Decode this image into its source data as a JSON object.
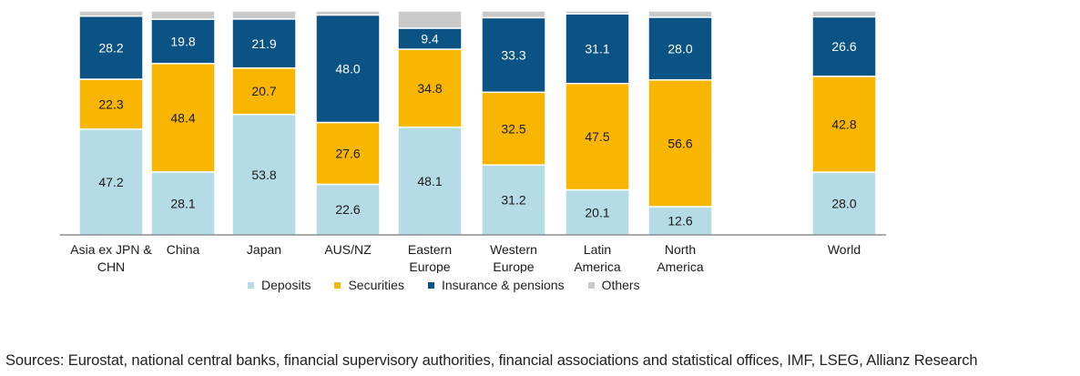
{
  "chart_data": {
    "type": "bar",
    "stacked": true,
    "normalized_percent": true,
    "categories": [
      [
        "Asia ex JPN &",
        "CHN"
      ],
      [
        "China"
      ],
      [
        "Japan"
      ],
      [
        "AUS/NZ"
      ],
      [
        "Eastern",
        "Europe"
      ],
      [
        "Western",
        "Europe"
      ],
      [
        "Latin",
        "America"
      ],
      [
        "North",
        "America"
      ],
      [
        "World"
      ]
    ],
    "series": [
      {
        "name": "Deposits",
        "color": "#b5dbe6",
        "values": [
          47.2,
          28.1,
          53.8,
          22.6,
          48.1,
          31.2,
          20.1,
          12.6,
          28.0
        ],
        "labels": [
          "47.2",
          "28.1",
          "53.8",
          "22.6",
          "48.1",
          "31.2",
          "20.1",
          "12.6",
          "28.0"
        ]
      },
      {
        "name": "Securities",
        "color": "#f9b600",
        "values": [
          22.3,
          48.4,
          20.7,
          27.6,
          34.8,
          32.5,
          47.5,
          56.6,
          42.8
        ],
        "labels": [
          "22.3",
          "48.4",
          "20.7",
          "27.6",
          "34.8",
          "32.5",
          "47.5",
          "56.6",
          "42.8"
        ]
      },
      {
        "name": "Insurance & pensions",
        "color": "#0b5384",
        "values": [
          28.2,
          19.8,
          21.9,
          48.0,
          9.4,
          33.3,
          31.1,
          28.0,
          26.6
        ],
        "labels": [
          "28.2",
          "19.8",
          "21.9",
          "48.0",
          "9.4",
          "33.3",
          "31.1",
          "28.0",
          "26.6"
        ]
      },
      {
        "name": "Others",
        "color": "#c9c9c9",
        "values": [
          2.3,
          3.7,
          3.6,
          1.8,
          7.7,
          3.0,
          1.3,
          2.8,
          2.6
        ],
        "labels": [
          "",
          "",
          "",
          "",
          "",
          "",
          "",
          "",
          ""
        ]
      }
    ],
    "ylim": [
      0,
      100
    ],
    "grid": false,
    "legend_position": "bottom",
    "title": "",
    "xlabel": "",
    "ylabel": ""
  },
  "source_text": "Sources: Eurostat, national central banks, financial supervisory authorities, financial associations and statistical offices, IMF, LSEG, Allianz Research"
}
